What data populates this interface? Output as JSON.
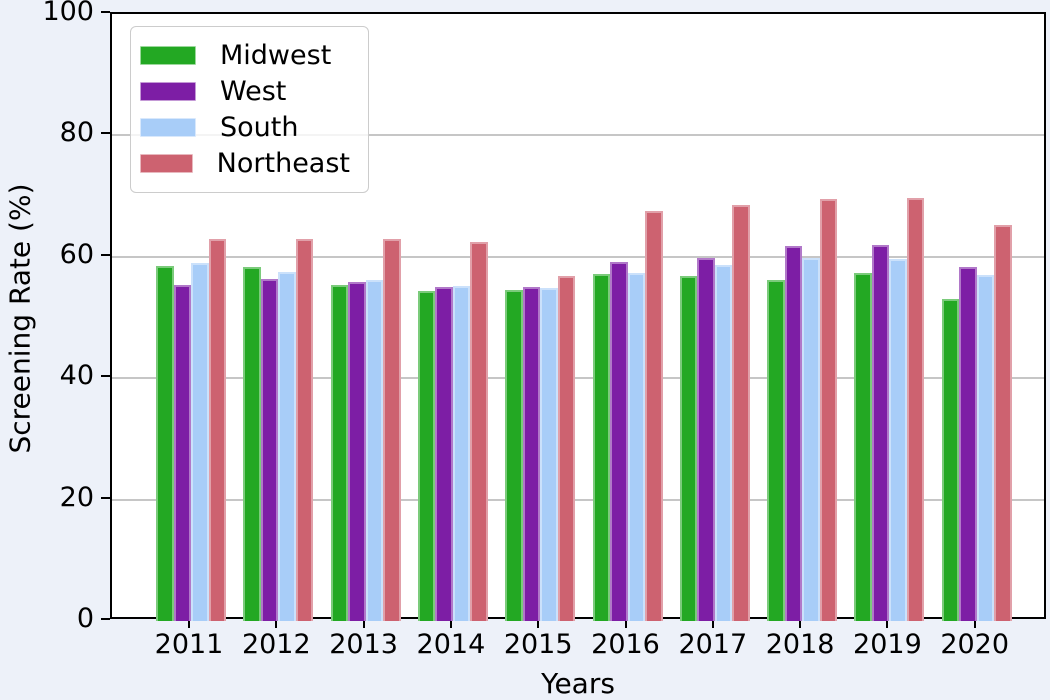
{
  "figure": {
    "background": "#edf1f9",
    "plot_background": "#ffffff",
    "grid_color": "#c6c6c6",
    "spine_color": "#000000"
  },
  "chart_data": {
    "type": "bar",
    "title": "",
    "xlabel": "Years",
    "ylabel": "Screening Rate (%)",
    "ylim": [
      0,
      100
    ],
    "yticks": [
      0,
      20,
      40,
      60,
      80,
      100
    ],
    "grid": "horizontal",
    "legend_position": "upper-left",
    "categories": [
      "2011",
      "2012",
      "2013",
      "2014",
      "2015",
      "2016",
      "2017",
      "2018",
      "2019",
      "2020"
    ],
    "series": [
      {
        "name": "Midwest",
        "color": "#23a823",
        "values": [
          58.5,
          58.4,
          55.4,
          54.4,
          54.5,
          57.1,
          56.9,
          56.2,
          57.3,
          53.1
        ]
      },
      {
        "name": "West",
        "color": "#7d1ea5",
        "values": [
          55.4,
          56.3,
          55.8,
          55.1,
          55.1,
          59.1,
          59.8,
          61.7,
          62.0,
          58.3
        ]
      },
      {
        "name": "South",
        "color": "#a8cdf8",
        "values": [
          59.0,
          57.5,
          56.1,
          55.2,
          54.9,
          57.4,
          58.7,
          59.8,
          59.7,
          57.0
        ]
      },
      {
        "name": "Northeast",
        "color": "#cd6270",
        "values": [
          62.9,
          62.9,
          63.0,
          62.4,
          56.9,
          67.5,
          68.6,
          69.6,
          69.7,
          65.3
        ]
      }
    ]
  }
}
